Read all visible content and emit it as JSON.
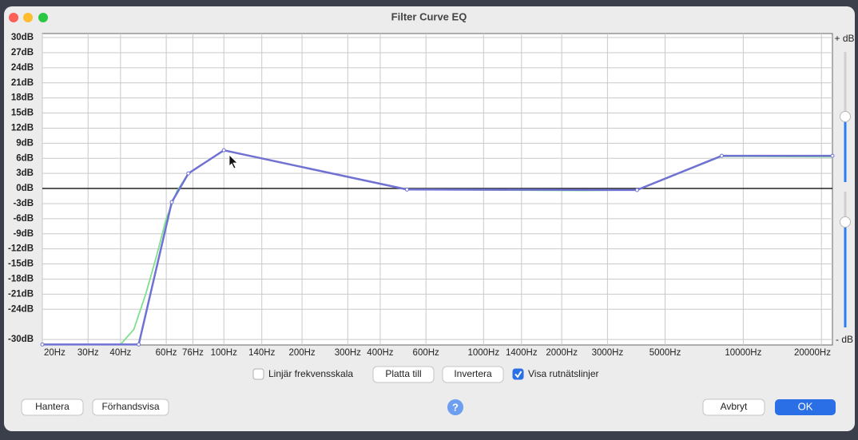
{
  "window": {
    "title": "Filter Curve EQ"
  },
  "chart_data": {
    "type": "line",
    "x_scale": "log",
    "xlim": [
      20,
      22050
    ],
    "ylim": [
      -31.1,
      30.8
    ],
    "grid": true,
    "xticks": [
      {
        "value": 20,
        "label": "20Hz"
      },
      {
        "value": 30,
        "label": "30Hz"
      },
      {
        "value": 40,
        "label": "40Hz"
      },
      {
        "value": 60,
        "label": "60Hz"
      },
      {
        "value": 76,
        "label": "76Hz"
      },
      {
        "value": 100,
        "label": "100Hz"
      },
      {
        "value": 140,
        "label": "140Hz"
      },
      {
        "value": 200,
        "label": "200Hz"
      },
      {
        "value": 300,
        "label": "300Hz"
      },
      {
        "value": 400,
        "label": "400Hz"
      },
      {
        "value": 600,
        "label": "600Hz"
      },
      {
        "value": 1000,
        "label": "1000Hz"
      },
      {
        "value": 1400,
        "label": "1400Hz"
      },
      {
        "value": 2000,
        "label": "2000Hz"
      },
      {
        "value": 3000,
        "label": "3000Hz"
      },
      {
        "value": 5000,
        "label": "5000Hz"
      },
      {
        "value": 10000,
        "label": "10000Hz"
      },
      {
        "value": 20000,
        "label": "20000Hz"
      }
    ],
    "yticks": [
      {
        "value": 30,
        "label": "30dB"
      },
      {
        "value": 27,
        "label": "27dB"
      },
      {
        "value": 24,
        "label": "24dB"
      },
      {
        "value": 21,
        "label": "21dB"
      },
      {
        "value": 18,
        "label": "18dB"
      },
      {
        "value": 15,
        "label": "15dB"
      },
      {
        "value": 12,
        "label": "12dB"
      },
      {
        "value": 9,
        "label": "9dB"
      },
      {
        "value": 6,
        "label": "6dB"
      },
      {
        "value": 3,
        "label": "3dB"
      },
      {
        "value": 0,
        "label": "0dB"
      },
      {
        "value": -3,
        "label": "-3dB"
      },
      {
        "value": -6,
        "label": "-6dB"
      },
      {
        "value": -9,
        "label": "-9dB"
      },
      {
        "value": -12,
        "label": "-12dB"
      },
      {
        "value": -15,
        "label": "-15dB"
      },
      {
        "value": -18,
        "label": "-18dB"
      },
      {
        "value": -21,
        "label": "-21dB"
      },
      {
        "value": -24,
        "label": "-24dB"
      },
      {
        "value": -30,
        "label": "-30dB"
      }
    ],
    "series": [
      {
        "color": "#7ee08c",
        "x": [
          20,
          40,
          45,
          50,
          55,
          60,
          66,
          73,
          100,
          507,
          2400,
          3900,
          8260,
          22050
        ],
        "values": [
          -31,
          -31,
          -28,
          -21,
          -13.5,
          -6,
          -0.5,
          3,
          7.6,
          -0.2,
          -0.4,
          -0.3,
          6.4,
          6.3
        ]
      },
      {
        "color": "#6f72d2",
        "x": [
          20,
          47,
          63,
          73,
          100,
          507,
          3900,
          8260,
          22050
        ],
        "values": [
          -31,
          -31,
          -2.7,
          3,
          7.6,
          -0.2,
          -0.3,
          6.5,
          6.5
        ]
      }
    ]
  },
  "slider": {
    "top_label": "+ dB",
    "bottom_label": "- dB"
  },
  "controls": {
    "linear_scale": {
      "label": "Linjär frekvensskala",
      "checked": false
    },
    "flatten": "Platta till",
    "invert": "Invertera",
    "grid_lines": {
      "label": "Visa rutnätslinjer",
      "checked": true
    },
    "manage": "Hantera",
    "preview": "Förhandsvisa",
    "help": "?",
    "cancel": "Avbryt",
    "ok": "OK"
  }
}
